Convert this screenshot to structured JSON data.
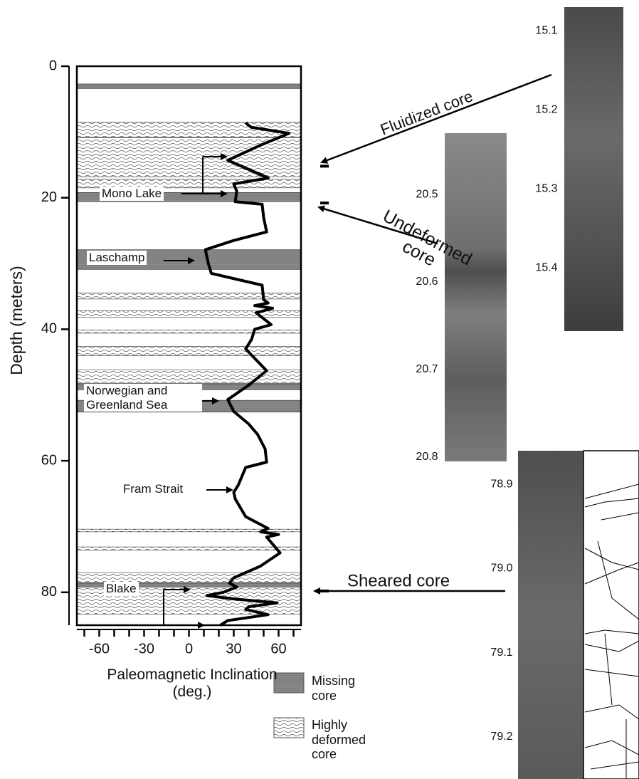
{
  "chart_data": {
    "type": "line",
    "y_title": "Depth (meters)",
    "x_title": "Paleomagnetic Inclination (deg.)",
    "ylim": [
      0,
      85
    ],
    "y_reversed": true,
    "yticks": [
      0,
      20,
      40,
      60,
      80
    ],
    "xlim": [
      -75,
      75
    ],
    "xticks": [
      -60,
      -30,
      0,
      30,
      60
    ],
    "x_minor_ticks": [
      -70,
      -50,
      -40,
      -20,
      -10,
      10,
      20,
      40,
      50,
      70
    ],
    "depth": [
      8.6,
      9.0,
      9.3,
      10.2,
      12.0,
      14.3,
      15.5,
      17.0,
      17.9,
      19.0,
      20.6,
      21.0,
      23.0,
      25.2,
      26.5,
      27.9,
      30.0,
      31.5,
      33.3,
      35.5,
      36.0,
      36.4,
      36.8,
      37.5,
      39.3,
      40.0,
      41.5,
      43.0,
      46.3,
      48.5,
      50.7,
      52.5,
      54.4,
      56.0,
      58.2,
      60.2,
      61.0,
      63.7,
      64.8,
      65.8,
      68.5,
      70.3,
      70.8,
      71.2,
      71.6,
      74.0,
      76.0,
      77.8,
      78.6,
      79.2,
      80.0,
      80.5,
      81.0,
      81.6,
      82.2,
      82.6,
      83.4,
      84.3,
      85.0
    ],
    "series": [
      {
        "color": "#000000",
        "values": [
          38,
          40,
          42,
          67,
          48,
          26,
          38,
          53,
          30,
          32,
          31,
          49,
          50,
          52,
          30,
          11,
          13,
          15,
          49,
          50,
          53,
          44,
          56,
          45,
          55,
          44,
          42,
          38,
          52,
          40,
          26,
          30,
          40,
          46,
          51,
          52,
          38,
          33,
          30,
          31,
          38,
          53,
          48,
          60,
          52,
          61,
          48,
          30,
          27,
          32,
          23,
          12,
          30,
          59,
          40,
          38,
          53,
          26,
          21
        ]
      }
    ],
    "bands": [
      {
        "name": "Missing core",
        "intervals": [
          [
            2.7,
            3.4
          ],
          [
            19.2,
            20.6
          ],
          [
            27.9,
            30.9
          ],
          [
            48.3,
            49.2
          ],
          [
            50.8,
            52.6
          ],
          [
            78.6,
            79.1
          ]
        ]
      },
      {
        "name": "Highly deformed core",
        "intervals": [
          [
            8.5,
            10.8
          ],
          [
            10.9,
            16.8
          ],
          [
            17.2,
            18.5
          ],
          [
            34.5,
            35.4
          ],
          [
            37.2,
            38.2
          ],
          [
            40.1,
            40.6
          ],
          [
            42.6,
            44.0
          ],
          [
            46.2,
            48.2
          ],
          [
            70.4,
            70.8
          ],
          [
            73.1,
            73.6
          ],
          [
            77.0,
            78.5
          ],
          [
            79.3,
            83.3
          ]
        ]
      }
    ],
    "annotations": [
      "Mono Lake",
      "Laschamp",
      "Norwegian and Greenland Sea",
      "Fram Strait",
      "Blake"
    ],
    "core_panels": [
      {
        "label": "Fluidized core",
        "depth": 15.2,
        "ylim": [
          15.07,
          15.48
        ],
        "yticks": [
          15.1,
          15.2,
          15.3,
          15.4
        ]
      },
      {
        "label": "Undeformed core",
        "depth": 20.8,
        "ylim": [
          20.43,
          20.805
        ],
        "yticks": [
          20.5,
          20.6,
          20.7,
          20.8
        ]
      },
      {
        "label": "Sheared core",
        "depth": 79.8,
        "ylim": [
          78.86,
          79.25
        ],
        "yticks": [
          78.9,
          {
            "value": 79.0,
            "label": "79.0"
          },
          79.1,
          79.2
        ]
      }
    ]
  }
}
